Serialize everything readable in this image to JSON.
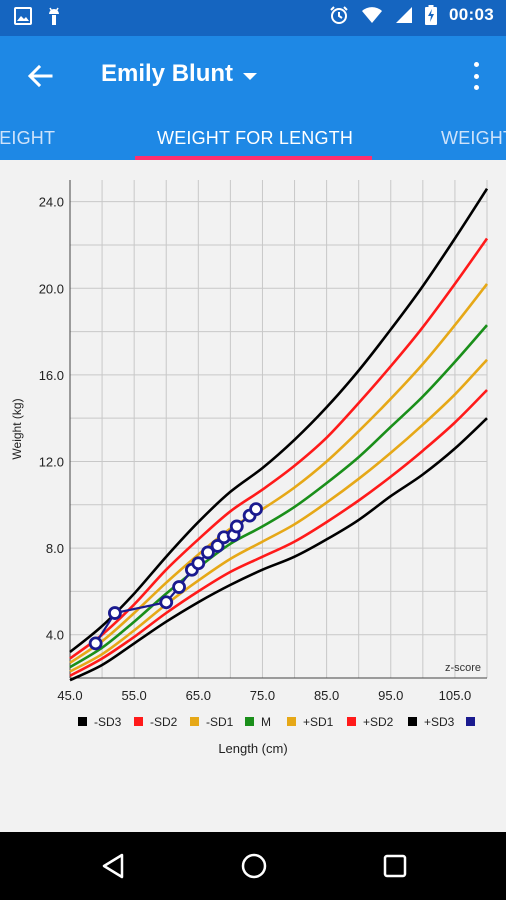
{
  "status_bar": {
    "time": "00:03",
    "left_icons": [
      "image-icon",
      "android-icon"
    ],
    "right_icons": [
      "alarm-icon",
      "wifi-icon",
      "signal-icon",
      "battery-charging-icon"
    ]
  },
  "app_bar": {
    "title": "Emily Blunt",
    "color": "#1e88e5"
  },
  "tabs": [
    {
      "label": "HEIGHT",
      "active": false
    },
    {
      "label": "WEIGHT FOR LENGTH",
      "active": true
    },
    {
      "label": "WEIGHT",
      "active": false
    }
  ],
  "chart_data": {
    "type": "line",
    "title": "",
    "xlabel": "Length (cm)",
    "ylabel": "Weight (kg)",
    "xlim": [
      45,
      110
    ],
    "ylim": [
      2,
      25
    ],
    "x_ticks": [
      "45.0",
      "55.0",
      "65.0",
      "75.0",
      "85.0",
      "95.0",
      "105.0"
    ],
    "y_ticks": [
      "4.0",
      "8.0",
      "12.0",
      "16.0",
      "20.0",
      "24.0"
    ],
    "x_tick_values": [
      45,
      55,
      65,
      75,
      85,
      95,
      105
    ],
    "y_tick_values": [
      4,
      8,
      12,
      16,
      20,
      24
    ],
    "grid": true,
    "annotation": "z-score",
    "x": [
      45,
      50,
      55,
      60,
      65,
      70,
      75,
      80,
      85,
      90,
      95,
      100,
      105,
      110
    ],
    "series": [
      {
        "name": "-SD3",
        "color": "#000000",
        "values": [
          1.9,
          2.6,
          3.6,
          4.6,
          5.5,
          6.3,
          7.0,
          7.6,
          8.4,
          9.3,
          10.4,
          11.4,
          12.6,
          14.0
        ]
      },
      {
        "name": "-SD2",
        "color": "#ff1a1a",
        "values": [
          2.1,
          2.9,
          3.9,
          5.0,
          6.0,
          6.9,
          7.6,
          8.3,
          9.2,
          10.2,
          11.3,
          12.5,
          13.8,
          15.3
        ]
      },
      {
        "name": "-SD1",
        "color": "#e6a817",
        "values": [
          2.3,
          3.1,
          4.2,
          5.4,
          6.5,
          7.5,
          8.3,
          9.1,
          10.1,
          11.2,
          12.4,
          13.7,
          15.1,
          16.7
        ]
      },
      {
        "name": "M",
        "color": "#1a8f1a",
        "values": [
          2.5,
          3.4,
          4.6,
          5.9,
          7.1,
          8.2,
          9.0,
          9.9,
          11.0,
          12.2,
          13.6,
          15.0,
          16.6,
          18.3
        ]
      },
      {
        "name": "+SD1",
        "color": "#e6a817",
        "values": [
          2.7,
          3.7,
          5.0,
          6.4,
          7.7,
          8.9,
          9.8,
          10.8,
          12.0,
          13.4,
          14.9,
          16.5,
          18.3,
          20.2
        ]
      },
      {
        "name": "+SD2",
        "color": "#ff1a1a",
        "values": [
          2.9,
          4.0,
          5.4,
          7.0,
          8.4,
          9.7,
          10.7,
          11.8,
          13.1,
          14.7,
          16.4,
          18.2,
          20.2,
          22.3
        ]
      },
      {
        "name": "+SD3",
        "color": "#000000",
        "values": [
          3.2,
          4.4,
          5.9,
          7.6,
          9.2,
          10.6,
          11.7,
          13.0,
          14.5,
          16.2,
          18.1,
          20.1,
          22.3,
          24.6
        ]
      }
    ],
    "patient": {
      "name": "",
      "color": "#1a1a8f",
      "points": [
        {
          "x": 49.0,
          "y": 3.6
        },
        {
          "x": 52.0,
          "y": 5.0
        },
        {
          "x": 60.0,
          "y": 5.5
        },
        {
          "x": 62.0,
          "y": 6.2
        },
        {
          "x": 64.0,
          "y": 7.0
        },
        {
          "x": 65.0,
          "y": 7.3
        },
        {
          "x": 66.5,
          "y": 7.8
        },
        {
          "x": 68.0,
          "y": 8.1
        },
        {
          "x": 69.0,
          "y": 8.5
        },
        {
          "x": 70.5,
          "y": 8.6
        },
        {
          "x": 71.0,
          "y": 9.0
        },
        {
          "x": 73.0,
          "y": 9.5
        },
        {
          "x": 74.0,
          "y": 9.8
        }
      ]
    },
    "legend": {
      "position": "bottom",
      "entries": [
        {
          "label": "-SD3",
          "color": "#000000"
        },
        {
          "label": "-SD2",
          "color": "#ff1a1a"
        },
        {
          "label": "-SD1",
          "color": "#e6a817"
        },
        {
          "label": "M",
          "color": "#1a8f1a"
        },
        {
          "label": "+SD1",
          "color": "#e6a817"
        },
        {
          "label": "+SD2",
          "color": "#ff1a1a"
        },
        {
          "label": "+SD3",
          "color": "#000000"
        },
        {
          "label": "",
          "color": "#1a1a8f"
        }
      ]
    }
  },
  "nav_bar": {
    "buttons": [
      "back-triangle-icon",
      "home-circle-icon",
      "recents-square-icon"
    ]
  }
}
